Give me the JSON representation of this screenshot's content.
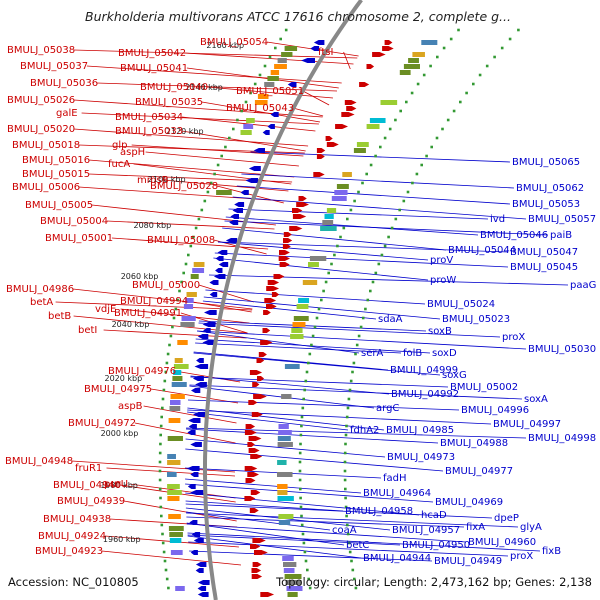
{
  "title": "Burkholderia multivorans ATCC 17616 chromosome 2, complete g...",
  "footer": {
    "accession": "Accession: NC_010805",
    "topology": "Topology: circular; Length: 2,473,162 bp; Genes: 2,138"
  },
  "colors": {
    "forward": "#cc0000",
    "reverse": "#0000cc",
    "backbone": "#888888",
    "gc_dots": "#339933"
  },
  "ticks": [
    "2160 kbp",
    "2140 kbp",
    "2120 kbp",
    "2100 kbp",
    "2080 kbp",
    "2060 kbp",
    "2040 kbp",
    "2020 kbp",
    "2000 kbp",
    "1980 kbp",
    "1960 kbp"
  ],
  "left_labels": [
    "BMULJ_05038",
    "BMULJ_05042",
    "BMULJ_05054",
    "BMULJ_05037",
    "BMULJ_05041",
    "BMULJ_05036",
    "BMULJ_05040",
    "BMULJ_05051",
    "BMULJ_05026",
    "BMULJ_05035",
    "BMULJ_05043",
    "galE",
    "BMULJ_05034",
    "BMULJ_05020",
    "BMULJ_05033",
    "BMULJ_05018",
    "glp",
    "aspH",
    "BMULJ_05016",
    "fucA",
    "BMULJ_05015",
    "mmsB",
    "BMULJ_05006",
    "BMULJ_05028",
    "BMULJ_05005",
    "BMULJ_05004",
    "BMULJ_05001",
    "BMULJ_05008",
    "BMULJ_05000",
    "BMULJ_04986",
    "betA",
    "BMULJ_04994",
    "vdjE",
    "betB",
    "BMULJ_04991",
    "betI",
    "BMULJ_04976",
    "BMULJ_04975",
    "aspB",
    "BMULJ_04972",
    "fruR1",
    "BMULJ_04948",
    "purU",
    "BMULJ_04940",
    "BMULJ_04939",
    "BMULJ_04938",
    "BMULJ_04924",
    "BMULJ_04923",
    "ftsI"
  ],
  "right_labels": [
    "BMULJ_05065",
    "BMULJ_05062",
    "BMULJ_05053",
    "BMULJ_05057",
    "ivd",
    "paiB",
    "BMULJ_05046",
    "BMULJ_05044",
    "BMULJ_05047",
    "BMULJ_05045",
    "proV",
    "proW",
    "paaG",
    "BMULJ_05024",
    "sdaA",
    "BMULJ_05023",
    "soxB",
    "proX",
    "BMULJ_05030",
    "serA",
    "folB",
    "soxD",
    "BMULJ_04999",
    "soxG",
    "BMULJ_05002",
    "soxA",
    "BMULJ_04992",
    "argC",
    "BMULJ_04996",
    "BMULJ_04997",
    "fdhA2",
    "BMULJ_04985",
    "BMULJ_04998",
    "BMULJ_04988",
    "BMULJ_04973",
    "BMULJ_04977",
    "fadH",
    "BMULJ_04964",
    "BMULJ_04969",
    "hcaD",
    "BMULJ_04958",
    "dpeP",
    "coaA",
    "BMULJ_04957",
    "fixA",
    "glyA",
    "BMULJ_04960",
    "betC",
    "BMULJ_04950",
    "proX",
    "fixB",
    "BMULJ_04944",
    "BMULJ_04949"
  ]
}
